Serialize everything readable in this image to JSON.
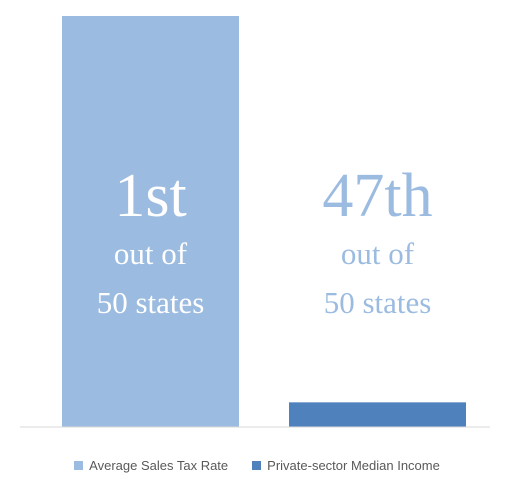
{
  "chart_data": {
    "type": "bar",
    "categories": [
      ""
    ],
    "series": [
      {
        "name": "Average Sales Tax Rate",
        "values": [
          50
        ],
        "color": "#9bbbe0",
        "label_lines": [
          "1st",
          "out of",
          "50 states"
        ],
        "label_color": "#ffffff"
      },
      {
        "name": "Private-sector Median Income",
        "values": [
          3
        ],
        "color": "#4f81bd",
        "label_lines": [
          "47th",
          "out of",
          "50 states"
        ],
        "label_color": "#9bbbe0"
      }
    ],
    "ylim": [
      0,
      50
    ],
    "grid": false,
    "legend_position": "bottom",
    "axis_color": "#d9d9d9"
  }
}
